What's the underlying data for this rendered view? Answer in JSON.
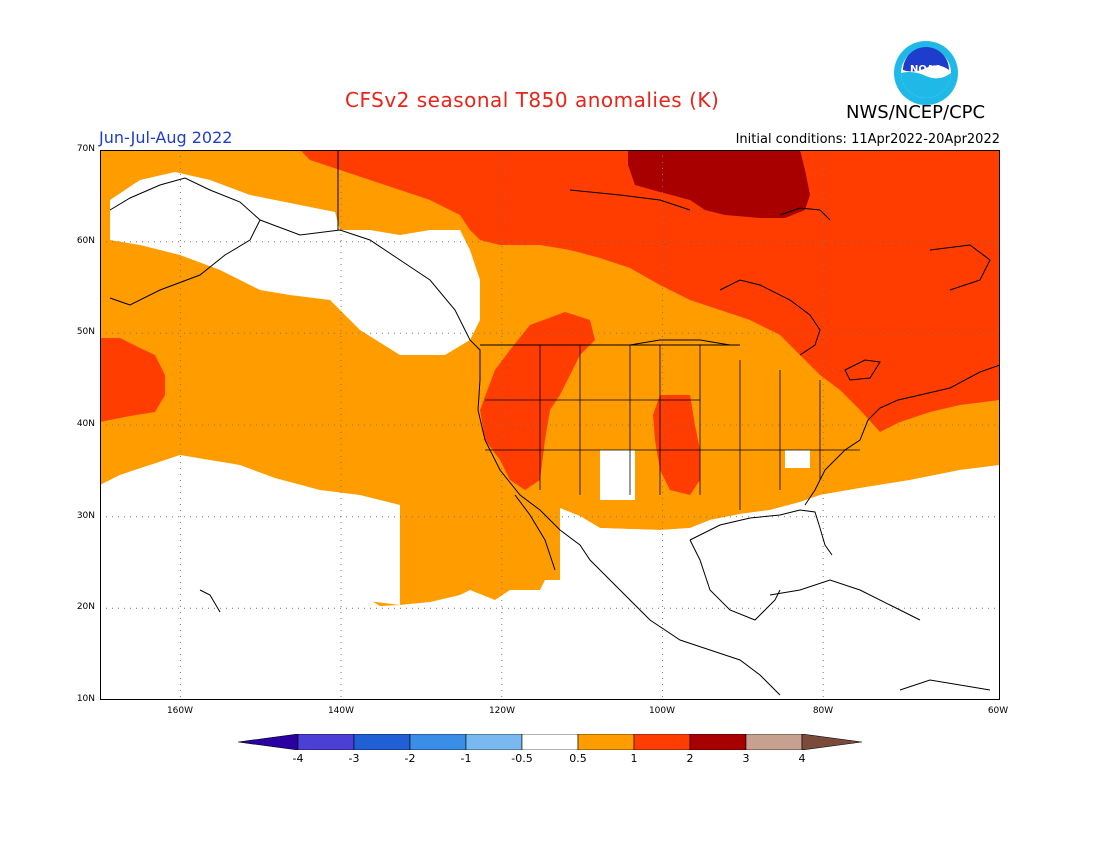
{
  "header": {
    "title": "CFSv2 seasonal T850 anomalies (K)",
    "org": "NWS/NCEP/CPC",
    "season": "Jun-Jul-Aug 2022",
    "initial_conditions": "Initial conditions: 11Apr2022-20Apr2022",
    "logo_text": "NOAA"
  },
  "map": {
    "lat_labels": [
      "70N",
      "60N",
      "50N",
      "40N",
      "30N",
      "20N",
      "10N"
    ],
    "lon_labels": [
      "160W",
      "140W",
      "120W",
      "100W",
      "80W",
      "60W"
    ],
    "extent": {
      "lon": [
        -172,
        -60
      ],
      "lat": [
        10,
        70
      ]
    }
  },
  "colorbar": {
    "labels": [
      "-4",
      "-3",
      "-2",
      "-1",
      "-0.5",
      "0.5",
      "1",
      "2",
      "3",
      "4"
    ],
    "colors": [
      "#2b00a3",
      "#4b3fd6",
      "#2160d4",
      "#3a8ee8",
      "#7ab8f0",
      "#ffffff",
      "#ff9d00",
      "#ff3d00",
      "#a80000",
      "#c8a090",
      "#7a4a3a"
    ]
  },
  "colors": {
    "anom_0_5_1": "#ff9d00",
    "anom_1_2": "#ff3d00",
    "anom_2_3": "#a80000",
    "title_red": "#e8241a",
    "season_blue": "#1f3dcc"
  }
}
